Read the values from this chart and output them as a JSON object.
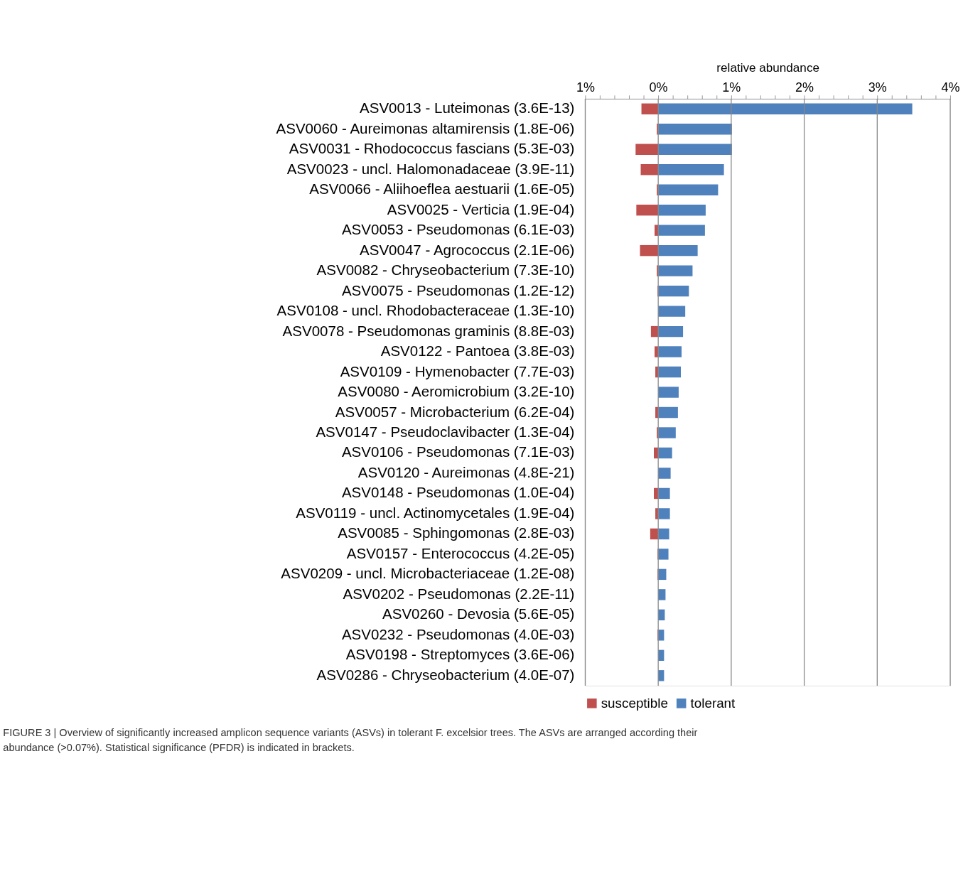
{
  "chart_data": {
    "type": "bar",
    "orientation": "horizontal",
    "stacked": true,
    "xlabel": "relative abundance",
    "categories": [
      "ASV0013 - Luteimonas  (3.6E-13)",
      "ASV0060 - Aureimonas altamirensis  (1.8E-06)",
      "ASV0031 - Rhodococcus fascians  (5.3E-03)",
      "ASV0023 - uncl. Halomonadaceae  (3.9E-11)",
      "ASV0066 - Aliihoeflea aestuarii  (1.6E-05)",
      "ASV0025 - Verticia   (1.9E-04)",
      "ASV0053 - Pseudomonas  (6.1E-03)",
      "ASV0047 - Agrococcus  (2.1E-06)",
      "ASV0082 - Chryseobacterium  (7.3E-10)",
      "ASV0075 - Pseudomonas  (1.2E-12)",
      "ASV0108 - uncl. Rhodobacteraceae  (1.3E-10)",
      "ASV0078 - Pseudomonas graminis  (8.8E-03)",
      "ASV0122 - Pantoea  (3.8E-03)",
      "ASV0109 - Hymenobacter  (7.7E-03)",
      "ASV0080 - Aeromicrobium  (3.2E-10)",
      "ASV0057 - Microbacterium  (6.2E-04)",
      "ASV0147 - Pseudoclavibacter  (1.3E-04)",
      "ASV0106 - Pseudomonas  (7.1E-03)",
      "ASV0120 - Aureimonas  (4.8E-21)",
      "ASV0148 - Pseudomonas  (1.0E-04)",
      "ASV0119 - uncl. Actinomycetales  (1.9E-04)",
      "ASV0085 - Sphingomonas  (2.8E-03)",
      "ASV0157 - Enterococcus  (4.2E-05)",
      "ASV0209 - uncl. Microbacteriaceae  (1.2E-08)",
      "ASV0202 - Pseudomonas  (2.2E-11)",
      "ASV0260 - Devosia  (5.6E-05)",
      "ASV0232 - Pseudomonas   (4.0E-03)",
      "ASV0198 - Streptomyces  (3.6E-06)",
      "ASV0286 - Chryseobacterium   (4.0E-07)"
    ],
    "series": [
      {
        "name": "susceptible",
        "color": "#c0504d",
        "values": [
          -0.23,
          -0.02,
          -0.31,
          -0.24,
          -0.02,
          -0.3,
          -0.05,
          -0.25,
          -0.02,
          -0.01,
          0,
          -0.1,
          -0.05,
          -0.04,
          0,
          -0.04,
          -0.02,
          -0.06,
          0,
          -0.06,
          -0.04,
          -0.11,
          -0.01,
          -0.01,
          0,
          0,
          -0.01,
          0,
          0
        ]
      },
      {
        "name": "tolerant",
        "color": "#4f81bd",
        "values": [
          3.48,
          1.01,
          1.01,
          0.9,
          0.82,
          0.65,
          0.64,
          0.54,
          0.47,
          0.42,
          0.37,
          0.34,
          0.32,
          0.31,
          0.28,
          0.27,
          0.24,
          0.19,
          0.17,
          0.16,
          0.16,
          0.15,
          0.14,
          0.11,
          0.1,
          0.09,
          0.08,
          0.08,
          0.08
        ]
      }
    ],
    "xlim": [
      -1,
      4
    ],
    "xticks": [
      {
        "value": -1,
        "label": "1%"
      },
      {
        "value": -0.8,
        "label": null
      },
      {
        "value": -0.6,
        "label": null
      },
      {
        "value": -0.4,
        "label": null
      },
      {
        "value": -0.2,
        "label": null
      },
      {
        "value": 0,
        "label": "0%"
      },
      {
        "value": 0.2,
        "label": null
      },
      {
        "value": 0.4,
        "label": null
      },
      {
        "value": 0.6,
        "label": null
      },
      {
        "value": 0.8,
        "label": null
      },
      {
        "value": 1,
        "label": "1%"
      },
      {
        "value": 1.2,
        "label": null
      },
      {
        "value": 1.4,
        "label": null
      },
      {
        "value": 1.6,
        "label": null
      },
      {
        "value": 1.8,
        "label": null
      },
      {
        "value": 2,
        "label": "2%"
      },
      {
        "value": 2.2,
        "label": null
      },
      {
        "value": 2.4,
        "label": null
      },
      {
        "value": 2.6,
        "label": null
      },
      {
        "value": 2.8,
        "label": null
      },
      {
        "value": 3,
        "label": "3%"
      },
      {
        "value": 3.2,
        "label": null
      },
      {
        "value": 3.4,
        "label": null
      },
      {
        "value": 3.6,
        "label": null
      },
      {
        "value": 3.8,
        "label": null
      },
      {
        "value": 4,
        "label": "4%"
      }
    ],
    "grid": "x",
    "legend": "bottom",
    "annotations": [
      "FIGURE 3 | Overview of significantly increased amplicon sequence variants (ASVs) in tolerant F. excelsior trees. The ASVs are arranged according their abundance (>0.07%). Statistical significance (PFDR) is indicated in brackets."
    ]
  }
}
